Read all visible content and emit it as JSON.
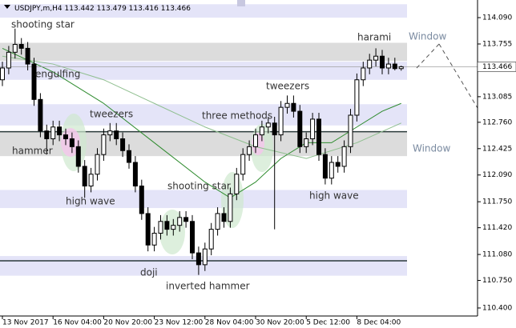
{
  "chart_data": {
    "type": "candlestick",
    "symbol": "USDJPY,m,H4",
    "ylim": [
      110.298,
      114.314
    ],
    "yticks": [
      {
        "value": 114.09,
        "label": "114.090"
      },
      {
        "value": 113.755,
        "label": "113.755"
      },
      {
        "value": 113.085,
        "label": "113.085"
      },
      {
        "value": 112.76,
        "label": "112.760"
      },
      {
        "value": 112.425,
        "label": "112.425"
      },
      {
        "value": 112.09,
        "label": "112.090"
      },
      {
        "value": 111.75,
        "label": "111.750"
      },
      {
        "value": 111.42,
        "label": "111.420"
      },
      {
        "value": 111.08,
        "label": "111.080"
      },
      {
        "value": 110.75,
        "label": "110.750"
      },
      {
        "value": 110.4,
        "label": "110.400"
      }
    ],
    "xticks": [
      {
        "value": 0,
        "label": "13 Nov 2017"
      },
      {
        "value": 8,
        "label": "16 Nov 04:00"
      },
      {
        "value": 16,
        "label": "20 Nov 20:00"
      },
      {
        "value": 24,
        "label": "23 Nov 12:00"
      },
      {
        "value": 32,
        "label": "28 Nov 04:00"
      },
      {
        "value": 40,
        "label": "30 Nov 20:00"
      },
      {
        "value": 48,
        "label": "5 Dec 12:00"
      },
      {
        "value": 56,
        "label": "8 Dec 04:00"
      }
    ],
    "open": [
      113.3,
      113.45,
      113.65,
      113.75,
      113.7,
      113.5,
      113.05,
      112.65,
      112.55,
      112.7,
      112.6,
      112.55,
      112.45,
      112.2,
      111.95,
      112.1,
      112.35,
      112.6,
      112.65,
      112.55,
      112.4,
      112.25,
      111.95,
      111.6,
      111.2,
      111.35,
      111.5,
      111.4,
      111.45,
      111.55,
      111.5,
      111.1,
      110.95,
      111.15,
      111.4,
      111.6,
      111.5,
      111.85,
      112.1,
      112.35,
      112.45,
      112.6,
      112.7,
      112.75,
      112.6,
      112.95,
      113.0,
      112.9,
      112.45,
      112.55,
      112.8,
      112.35,
      112.05,
      112.25,
      112.2,
      112.45,
      112.85,
      113.3,
      113.45,
      113.55,
      113.6,
      113.45,
      113.5,
      113.442
    ],
    "high": [
      113.53,
      113.73,
      113.95,
      113.83,
      113.78,
      113.58,
      113.13,
      112.73,
      112.78,
      112.78,
      112.68,
      112.63,
      112.53,
      112.28,
      112.18,
      112.43,
      112.68,
      112.75,
      112.75,
      112.63,
      112.48,
      112.33,
      112.03,
      111.68,
      111.43,
      111.58,
      111.58,
      111.53,
      111.63,
      111.63,
      111.58,
      111.18,
      111.23,
      111.48,
      111.68,
      111.68,
      111.93,
      112.18,
      112.43,
      112.53,
      112.68,
      112.78,
      112.83,
      112.83,
      113.03,
      113.1,
      113.1,
      112.98,
      112.63,
      112.88,
      112.88,
      112.43,
      112.33,
      112.33,
      112.53,
      112.93,
      113.38,
      113.53,
      113.63,
      113.7,
      113.68,
      113.58,
      113.58,
      113.479
    ],
    "low": [
      113.22,
      113.37,
      113.57,
      113.62,
      113.42,
      112.97,
      112.57,
      112.35,
      112.47,
      112.52,
      112.47,
      112.37,
      112.12,
      111.8,
      111.87,
      112.02,
      112.27,
      112.52,
      112.47,
      112.32,
      112.17,
      111.87,
      111.52,
      111.12,
      111.12,
      111.27,
      111.32,
      111.32,
      111.37,
      111.42,
      111.02,
      110.82,
      110.87,
      111.07,
      111.32,
      111.42,
      111.42,
      111.77,
      112.02,
      112.27,
      112.37,
      112.52,
      112.62,
      111.4,
      112.52,
      112.87,
      112.82,
      112.37,
      112.37,
      112.47,
      112.27,
      111.97,
      111.97,
      112.12,
      112.12,
      112.37,
      112.77,
      113.22,
      113.37,
      113.47,
      113.37,
      113.37,
      113.42,
      113.416
    ],
    "close": [
      113.45,
      113.65,
      113.75,
      113.7,
      113.5,
      113.05,
      112.65,
      112.55,
      112.7,
      112.6,
      112.55,
      112.45,
      112.2,
      111.95,
      112.1,
      112.35,
      112.6,
      112.65,
      112.55,
      112.4,
      112.25,
      111.95,
      111.6,
      111.2,
      111.35,
      111.5,
      111.4,
      111.45,
      111.55,
      111.5,
      111.1,
      110.95,
      111.15,
      111.4,
      111.6,
      111.5,
      111.85,
      112.1,
      112.35,
      112.45,
      112.6,
      112.7,
      112.75,
      112.6,
      112.95,
      113.0,
      112.9,
      112.45,
      112.55,
      112.8,
      112.35,
      112.05,
      112.25,
      112.2,
      112.45,
      112.85,
      113.3,
      113.45,
      113.55,
      113.6,
      113.45,
      113.5,
      113.442,
      113.466
    ],
    "zones": [
      {
        "from": 114.09,
        "to": 114.26,
        "color": "#e4e4f8"
      },
      {
        "from": 113.54,
        "to": 113.77,
        "color": "#dcdcdc"
      },
      {
        "from": 113.3,
        "to": 113.53,
        "color": "#e4e4f8"
      },
      {
        "from": 112.72,
        "to": 112.99,
        "color": "#e4e4f8"
      },
      {
        "from": 112.33,
        "to": 112.64,
        "color": "#dcdcdc"
      },
      {
        "from": 111.67,
        "to": 111.9,
        "color": "#e4e4f8"
      },
      {
        "from": 110.81,
        "to": 111.06,
        "color": "#e4e4f8"
      }
    ],
    "levels": [
      112.64,
      111.0
    ],
    "moving_averages": [
      {
        "color": "#2e8b2e",
        "x": [
          0,
          8,
          16,
          24,
          32,
          36,
          40,
          44,
          48,
          52,
          56,
          60,
          63
        ],
        "values": [
          113.7,
          113.4,
          113.0,
          112.5,
          112.0,
          111.8,
          112.0,
          112.3,
          112.5,
          112.5,
          112.7,
          112.9,
          113.0
        ]
      },
      {
        "color": "#8fbf8f",
        "x": [
          0,
          8,
          16,
          24,
          32,
          40,
          48,
          56,
          63
        ],
        "values": [
          113.6,
          113.5,
          113.3,
          113.0,
          112.7,
          112.45,
          112.3,
          112.5,
          112.75
        ]
      }
    ],
    "annotations": [
      "shooting star",
      "engulfing",
      "hammer",
      "tweezers",
      "high wave",
      "shooting star",
      "doji",
      "inverted hammer",
      "three methods",
      "tweezers",
      "high wave",
      "harami",
      "Window",
      "Window"
    ]
  }
}
